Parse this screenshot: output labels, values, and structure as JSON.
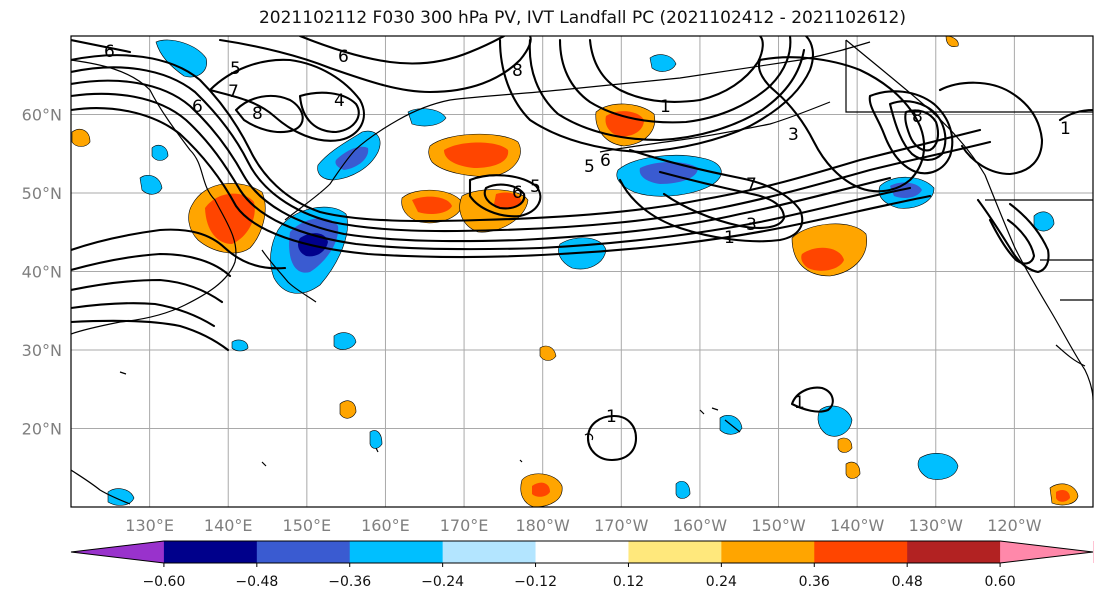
{
  "title": "2021102112 F030 300 hPa PV, IVT Landfall PC (2021102412 - 2021102612)",
  "lat_labels": [
    {
      "label": "60°N",
      "lat": 60
    },
    {
      "label": "50°N",
      "lat": 50
    },
    {
      "label": "40°N",
      "lat": 40
    },
    {
      "label": "30°N",
      "lat": 30
    },
    {
      "label": "20°N",
      "lat": 20
    }
  ],
  "lon_labels": [
    {
      "label": "130°E",
      "lon": 130
    },
    {
      "label": "140°E",
      "lon": 140
    },
    {
      "label": "150°E",
      "lon": 150
    },
    {
      "label": "160°E",
      "lon": 160
    },
    {
      "label": "170°E",
      "lon": 170
    },
    {
      "label": "180°W",
      "lon": 180
    },
    {
      "label": "170°W",
      "lon": 190
    },
    {
      "label": "160°W",
      "lon": 200
    },
    {
      "label": "150°W",
      "lon": 210
    },
    {
      "label": "140°W",
      "lon": 220
    },
    {
      "label": "130°W",
      "lon": 230
    },
    {
      "label": "120°W",
      "lon": 240
    }
  ],
  "colorbar": {
    "colors": [
      "#9932cc",
      "#00008b",
      "#3a5bd1",
      "#00bfff",
      "#b3e5ff",
      "#ffffff",
      "#ffe87c",
      "#ffa500",
      "#ff4500",
      "#b22222",
      "#ff88aa"
    ],
    "tick_labels": [
      "−0.60",
      "−0.48",
      "−0.36",
      "−0.24",
      "−0.12",
      "0.12",
      "0.24",
      "0.36",
      "0.48",
      "0.60"
    ]
  },
  "contour_labels": [
    "6",
    "5",
    "7",
    "6",
    "8",
    "4",
    "6",
    "8",
    "5",
    "6",
    "6",
    "5",
    "7",
    "3",
    "1",
    "3",
    "1",
    "8",
    "1",
    "1",
    "1"
  ]
}
